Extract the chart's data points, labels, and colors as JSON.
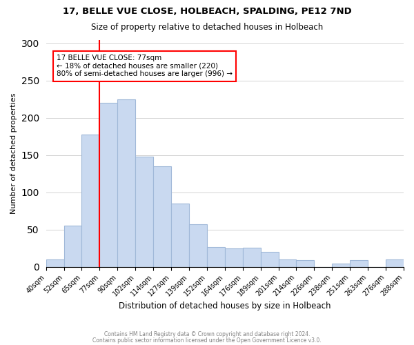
{
  "title_line1": "17, BELLE VUE CLOSE, HOLBEACH, SPALDING, PE12 7ND",
  "title_line2": "Size of property relative to detached houses in Holbeach",
  "xlabel": "Distribution of detached houses by size in Holbeach",
  "ylabel": "Number of detached properties",
  "bar_labels": [
    "40sqm",
    "52sqm",
    "65sqm",
    "77sqm",
    "90sqm",
    "102sqm",
    "114sqm",
    "127sqm",
    "139sqm",
    "152sqm",
    "164sqm",
    "176sqm",
    "189sqm",
    "201sqm",
    "214sqm",
    "226sqm",
    "238sqm",
    "251sqm",
    "263sqm",
    "276sqm",
    "288sqm"
  ],
  "bar_values": [
    10,
    55,
    178,
    220,
    225,
    148,
    135,
    85,
    57,
    27,
    25,
    26,
    20,
    10,
    9,
    0,
    4,
    9,
    0,
    10
  ],
  "bar_color": "#c9d9f0",
  "bar_edge_color": "#a0b8d8",
  "vline_x": 3,
  "vline_color": "red",
  "annotation_title": "17 BELLE VUE CLOSE: 77sqm",
  "annotation_line1": "← 18% of detached houses are smaller (220)",
  "annotation_line2": "80% of semi-detached houses are larger (996) →",
  "annotation_box_edge": "red",
  "ylim": [
    0,
    305
  ],
  "footer1": "Contains HM Land Registry data © Crown copyright and database right 2024.",
  "footer2": "Contains public sector information licensed under the Open Government Licence v3.0."
}
